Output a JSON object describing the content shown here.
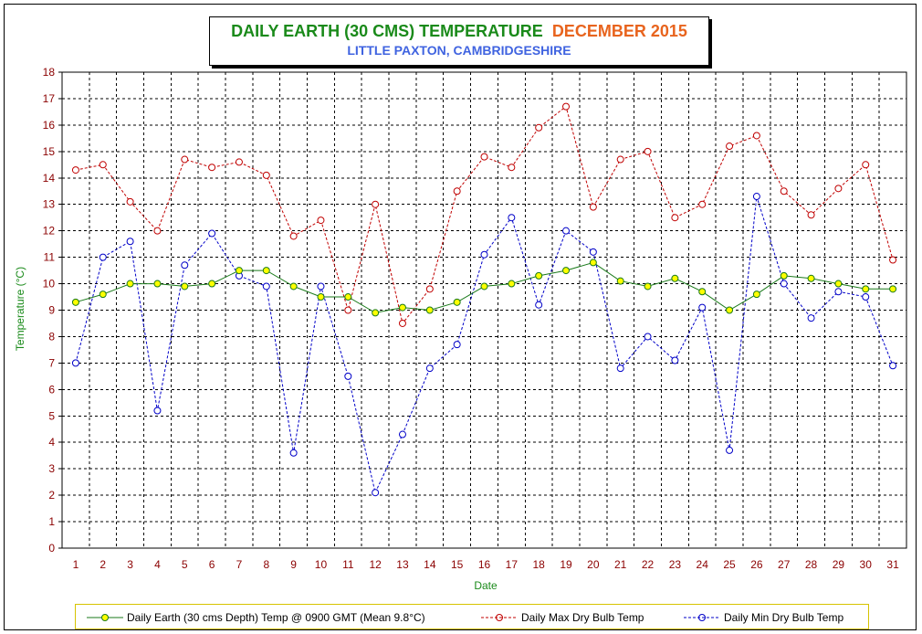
{
  "title": {
    "main": "DAILY EARTH (30 CMS) TEMPERATURE",
    "month": "DECEMBER 2015",
    "subtitle": "LITTLE PAXTON, CAMBRIDGESHIRE"
  },
  "colors": {
    "earth": "#1a7a1a",
    "earth_marker": "#ffff00",
    "max": "#c00000",
    "min": "#0000c8",
    "grid": "#000000",
    "tick_labels": "#8b0000",
    "axis_title": "#1a8a1a"
  },
  "chart_data": {
    "type": "line",
    "xlabel": "Date",
    "ylabel": "Temperature (°C)",
    "ylim": [
      0,
      18
    ],
    "grid": true,
    "legend_position": "bottom",
    "x": [
      1,
      2,
      3,
      4,
      5,
      6,
      7,
      8,
      9,
      10,
      11,
      12,
      13,
      14,
      15,
      16,
      17,
      18,
      19,
      20,
      21,
      22,
      23,
      24,
      25,
      26,
      27,
      28,
      29,
      30,
      31
    ],
    "y_ticks": [
      0,
      1,
      2,
      3,
      4,
      5,
      6,
      7,
      8,
      9,
      10,
      11,
      12,
      13,
      14,
      15,
      16,
      17,
      18
    ],
    "series": [
      {
        "name": "Daily Earth (30 cms Depth) Temp @ 0900 GMT (Mean 9.8°C)",
        "values": [
          9.3,
          9.6,
          10.0,
          10.0,
          9.9,
          10.0,
          10.5,
          10.5,
          9.9,
          9.5,
          9.5,
          8.9,
          9.1,
          9.0,
          9.3,
          9.9,
          10.0,
          10.3,
          10.5,
          10.8,
          10.1,
          9.9,
          10.2,
          9.7,
          9.0,
          9.6,
          10.3,
          10.2,
          10.0,
          9.8,
          9.8
        ]
      },
      {
        "name": "Daily Max Dry Bulb Temp",
        "values": [
          14.3,
          14.5,
          13.1,
          12.0,
          14.7,
          14.4,
          14.6,
          14.1,
          11.8,
          12.4,
          9.0,
          13.0,
          8.5,
          9.8,
          13.5,
          14.8,
          14.4,
          15.9,
          16.7,
          12.9,
          14.7,
          15.0,
          12.5,
          13.0,
          15.2,
          15.6,
          13.5,
          12.6,
          13.6,
          14.5,
          10.9
        ]
      },
      {
        "name": "Daily Min Dry Bulb Temp",
        "values": [
          7.0,
          11.0,
          11.6,
          5.2,
          10.7,
          11.9,
          10.3,
          9.9,
          3.6,
          9.9,
          6.5,
          2.1,
          4.3,
          6.8,
          7.7,
          11.1,
          12.5,
          9.2,
          12.0,
          11.2,
          6.8,
          8.0,
          7.1,
          9.1,
          3.7,
          13.3,
          10.0,
          8.7,
          9.7,
          9.5,
          6.9
        ]
      }
    ]
  }
}
